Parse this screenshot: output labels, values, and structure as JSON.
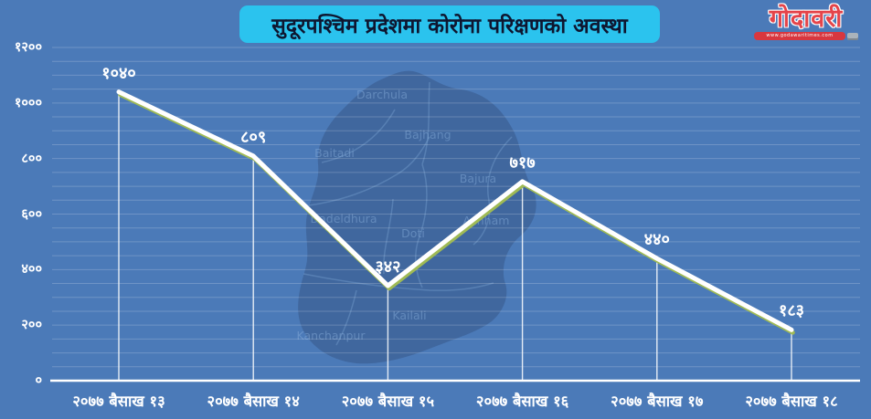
{
  "page": {
    "background_color": "#4b7ab8"
  },
  "title": {
    "text": "सुदूरपश्चिम प्रदेशमा कोरोना परिक्षणको अवस्था",
    "bg_color": "#2bc3ee",
    "text_color": "#0e1630"
  },
  "logo": {
    "name": "गोदावरी",
    "tagline": "www.godawaritimes.com",
    "name_color": "#e4444a",
    "ribbon_color": "#d8373f"
  },
  "chart_data": {
    "type": "line",
    "title": "सुदूरपश्चिम प्रदेशमा कोरोना परिक्षणको अवस्था",
    "categories": [
      "२०७७ बैसाख १३",
      "२०७७ बैसाख १४",
      "२०७७ बैसाख १५",
      "२०७७ बैसाख १६",
      "२०७७ बैसाख १७",
      "२०७७ बैसाख १८"
    ],
    "values": [
      1040,
      809,
      342,
      717,
      440,
      183
    ],
    "value_labels": [
      "१०४०",
      "८०९",
      "३४२",
      "७१७",
      "४४०",
      "१८३"
    ],
    "y_ticks": [
      {
        "value": 1200,
        "label": "१२००"
      },
      {
        "value": 1000,
        "label": "१०००"
      },
      {
        "value": 800,
        "label": "८००"
      },
      {
        "value": 600,
        "label": "६००"
      },
      {
        "value": 400,
        "label": "४००"
      },
      {
        "value": 200,
        "label": "२००"
      },
      {
        "value": 0,
        "label": "०"
      }
    ],
    "ylim": [
      0,
      1200
    ],
    "grid_step": 50,
    "grid_visible": true,
    "legend_position": "none",
    "line_color": "#ffffff",
    "line_under_color": "#9fba55",
    "axis_color": "#ffffff",
    "background_color": "#4b7ab8",
    "watermark": "sudurpashchim-province-map",
    "map_districts": [
      "Darchula",
      "Bajhang",
      "Baitadi",
      "Bajura",
      "Dadeldhura",
      "Doti",
      "Achham",
      "Kailali",
      "Kanchanpur"
    ]
  }
}
